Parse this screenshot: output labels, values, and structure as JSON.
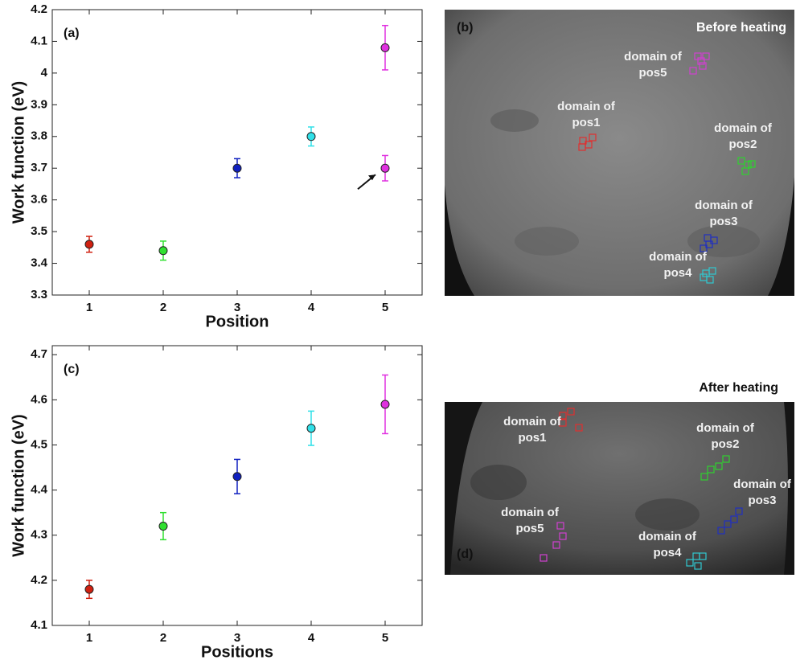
{
  "chart_data": [
    {
      "type": "errorbar",
      "label": "(a)",
      "xlabel": "Position",
      "ylabel": "Work function (eV)",
      "xlim": [
        0.5,
        5.5
      ],
      "xticks": [
        1,
        2,
        3,
        4,
        5
      ],
      "ylim": [
        3.3,
        4.2
      ],
      "yticks": [
        3.3,
        3.4,
        3.5,
        3.6,
        3.7,
        3.8,
        3.9,
        4,
        4.1,
        4.2
      ],
      "points": [
        {
          "x": 1,
          "y": 3.46,
          "err": 0.025,
          "color": "#d02010"
        },
        {
          "x": 2,
          "y": 3.44,
          "err": 0.03,
          "color": "#30e030"
        },
        {
          "x": 3,
          "y": 3.7,
          "err": 0.03,
          "color": "#1020c0"
        },
        {
          "x": 4,
          "y": 3.8,
          "err": 0.03,
          "color": "#30e0e8"
        },
        {
          "x": 5,
          "y": 4.08,
          "err": 0.07,
          "color": "#e030e0"
        },
        {
          "x": 5,
          "y": 3.7,
          "err": 0.04,
          "color": "#e030e0"
        }
      ]
    },
    {
      "type": "errorbar",
      "label": "(c)",
      "xlabel": "Positions",
      "ylabel": "Work function (eV)",
      "xlim": [
        0.5,
        5.5
      ],
      "xticks": [
        1,
        2,
        3,
        4,
        5
      ],
      "ylim": [
        4.1,
        4.72
      ],
      "yticks": [
        4.1,
        4.2,
        4.3,
        4.4,
        4.5,
        4.6,
        4.7
      ],
      "points": [
        {
          "x": 1,
          "y": 4.18,
          "err": 0.02,
          "color": "#d02010"
        },
        {
          "x": 2,
          "y": 4.32,
          "err": 0.03,
          "color": "#30e030"
        },
        {
          "x": 3,
          "y": 4.43,
          "err": 0.038,
          "color": "#1020c0"
        },
        {
          "x": 4,
          "y": 4.537,
          "err": 0.038,
          "color": "#30e0e8"
        },
        {
          "x": 5,
          "y": 4.59,
          "err": 0.065,
          "color": "#e030e0"
        }
      ]
    }
  ],
  "panels": [
    {
      "label": "(b)",
      "caption": "Before heating",
      "annotations": [
        {
          "lines": [
            "domain of",
            "pos5"
          ]
        },
        {
          "lines": [
            "domain of",
            "pos1"
          ]
        },
        {
          "lines": [
            "domain of",
            "pos2"
          ]
        },
        {
          "lines": [
            "domain of",
            "pos3"
          ]
        },
        {
          "lines": [
            "domain of",
            "pos4"
          ]
        }
      ]
    },
    {
      "label": "(d)",
      "caption": "After heating",
      "annotations": [
        {
          "lines": [
            "domain of",
            "pos1"
          ]
        },
        {
          "lines": [
            "domain of",
            "pos2"
          ]
        },
        {
          "lines": [
            "domain of",
            "pos3"
          ]
        },
        {
          "lines": [
            "domain of",
            "pos5"
          ]
        },
        {
          "lines": [
            "domain of",
            "pos4"
          ]
        }
      ]
    }
  ]
}
